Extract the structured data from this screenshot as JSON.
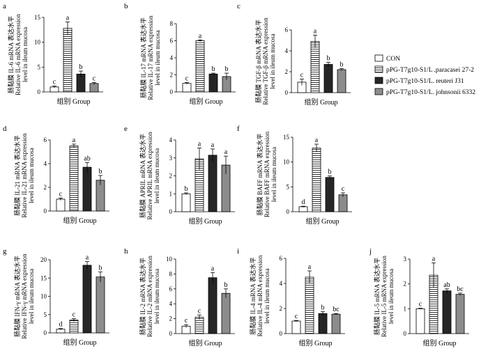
{
  "figure": {
    "series": [
      {
        "key": "con",
        "name": "CON",
        "fill": "#ffffff",
        "pattern": false
      },
      {
        "key": "l27",
        "name": "pPG-T7g10-S1/L .paracasei 27-2",
        "fill": "#ffffff",
        "pattern": true
      },
      {
        "key": "j31",
        "name": "pPG-T7g10-S1/L. reuteri J31",
        "fill": "#262626",
        "pattern": false
      },
      {
        "key": "j6332",
        "name": "pPG-T7g10-S1/L. johnsonii 6332",
        "fill": "#8c8c8c",
        "pattern": false
      }
    ],
    "colors": {
      "axis": "#000000",
      "dark_bar": "#262626",
      "grey_bar": "#8c8c8c",
      "hatch": "#000000"
    },
    "legend_position": "right"
  },
  "chart_data": [
    {
      "id": "a",
      "type": "bar",
      "panel_label": "a",
      "title": "",
      "xlabel": "组别 Group",
      "ylabel_cn": "肠黏膜 IL-6 mRNA 表达水平",
      "ylabel_en": "Relative IL-6 mRNA expression",
      "ylabel_en2": "level in ileum mucosa",
      "ylim": [
        0,
        15
      ],
      "yticks": [
        0,
        5,
        10,
        15
      ],
      "values": [
        1.0,
        12.8,
        3.6,
        1.7
      ],
      "errors": [
        0.2,
        1.3,
        0.6,
        0.2
      ],
      "letters": [
        "c",
        "a",
        "b",
        "c"
      ]
    },
    {
      "id": "b",
      "type": "bar",
      "panel_label": "b",
      "title": "",
      "xlabel": "组别 Group",
      "ylabel_cn": "肠黏膜 IL-17 mRNA 表达水平",
      "ylabel_en": "Relative IL-17 mRNA expression",
      "ylabel_en2": "level in ileum mucosa",
      "ylim": [
        0,
        8
      ],
      "yticks": [
        0,
        2,
        4,
        6,
        8
      ],
      "values": [
        1.0,
        6.0,
        2.1,
        1.8
      ],
      "errors": [
        0.1,
        0.1,
        0.1,
        0.4
      ],
      "letters": [
        "c",
        "a",
        "b",
        "b"
      ]
    },
    {
      "id": "c",
      "type": "bar",
      "panel_label": "c",
      "title": "",
      "xlabel": "组别 Group",
      "ylabel_cn": "肠黏膜 TGF-β mRNA 表达水平",
      "ylabel_en": "Relative TGF-β mRNA expression",
      "ylabel_en2": "level in ileum mucosa",
      "ylim": [
        0,
        6
      ],
      "yticks": [
        0,
        2,
        4,
        6
      ],
      "values": [
        1.0,
        4.9,
        2.7,
        2.2
      ],
      "errors": [
        0.3,
        0.6,
        0.2,
        0.1
      ],
      "letters": [
        "c",
        "a",
        "b",
        "b"
      ]
    },
    {
      "id": "d",
      "type": "bar",
      "panel_label": "d",
      "title": "",
      "xlabel": "组别 Group",
      "ylabel_cn": "肠黏膜 IL-21 mRNA 表达水平",
      "ylabel_en": "Relative IL-21 mRNA expression",
      "ylabel_en2": "level in ileum mucosa",
      "ylim": [
        0,
        6
      ],
      "yticks": [
        0,
        2,
        4,
        6
      ],
      "values": [
        1.0,
        5.5,
        3.7,
        2.6
      ],
      "errors": [
        0.1,
        0.15,
        0.4,
        0.4
      ],
      "letters": [
        "c",
        "a",
        "ab",
        "b"
      ]
    },
    {
      "id": "e",
      "type": "bar",
      "panel_label": "e",
      "title": "",
      "xlabel": "组别 Group",
      "ylabel_cn": "肠黏膜 APRIL mRNA 表达水平",
      "ylabel_en": "Relative APRIL mRNA expression",
      "ylabel_en2": "level in ileum mucosa",
      "ylim": [
        0,
        4
      ],
      "yticks": [
        0,
        1,
        2,
        3,
        4
      ],
      "values": [
        1.0,
        2.95,
        3.15,
        2.6
      ],
      "errors": [
        0.05,
        0.6,
        0.35,
        0.5
      ],
      "letters": [
        "b",
        "a",
        "a",
        "a"
      ]
    },
    {
      "id": "f",
      "type": "bar",
      "panel_label": "f",
      "title": "",
      "xlabel": "组别 Group",
      "ylabel_cn": "肠黏膜 BAFF mRNA 表达水平",
      "ylabel_en": "Relative BAFF mRNA expression",
      "ylabel_en2": "level in ileum mucosa",
      "ylim": [
        0,
        15
      ],
      "yticks": [
        0,
        5,
        10,
        15
      ],
      "values": [
        1.0,
        12.8,
        6.9,
        3.4
      ],
      "errors": [
        0.1,
        0.8,
        0.3,
        0.4
      ],
      "letters": [
        "d",
        "a",
        "b",
        "c"
      ]
    },
    {
      "id": "g",
      "type": "bar",
      "panel_label": "g",
      "title": "",
      "xlabel": "组别 Group",
      "ylabel_cn": "肠黏膜 IFN-γ mRNA 表达水平",
      "ylabel_en": "Relative IFN-γ mRNA expression",
      "ylabel_en2": "level in ileum mucosa",
      "ylim": [
        0,
        20
      ],
      "yticks": [
        0,
        5,
        10,
        15,
        20
      ],
      "values": [
        1.0,
        3.5,
        18.5,
        15.3
      ],
      "errors": [
        0.2,
        0.4,
        1.0,
        1.4
      ],
      "letters": [
        "d",
        "c",
        "a",
        "b"
      ]
    },
    {
      "id": "h",
      "type": "bar",
      "panel_label": "h",
      "title": "",
      "xlabel": "组别 Group",
      "ylabel_cn": "肠黏膜 IL-2 mRNA 表达水平",
      "ylabel_en": "Relative IL-2 mRNA expression",
      "ylabel_en2": "level in ileum mucosa",
      "ylim": [
        0,
        10
      ],
      "yticks": [
        0,
        2,
        4,
        6,
        8,
        10
      ],
      "values": [
        1.0,
        2.2,
        7.5,
        5.4
      ],
      "errors": [
        0.2,
        0.3,
        0.7,
        0.6
      ],
      "letters": [
        "c",
        "c",
        "a",
        "b"
      ]
    },
    {
      "id": "i",
      "type": "bar",
      "panel_label": "i",
      "title": "",
      "xlabel": "组别 Group",
      "ylabel_cn": "肠黏膜 IL-4 mRNA 表达水平",
      "ylabel_en": "Relative IL-4 mRNA expression",
      "ylabel_en2": "level in ileum mucosa",
      "ylim": [
        0,
        6
      ],
      "yticks": [
        0,
        2,
        4,
        6
      ],
      "values": [
        1.0,
        4.5,
        1.6,
        1.55
      ],
      "errors": [
        0.05,
        0.5,
        0.15,
        0.05
      ],
      "letters": [
        "c",
        "a",
        "b",
        "bc"
      ]
    },
    {
      "id": "j",
      "type": "bar",
      "panel_label": "j",
      "title": "",
      "xlabel": "组别 Group",
      "ylabel_cn": "肠黏膜 IL-5 mRNA 表达水平",
      "ylabel_en": "Relative IL-5 mRNA expression",
      "ylabel_en2": "level in ileum mucosa",
      "ylim": [
        0,
        3
      ],
      "yticks": [
        0,
        1,
        2,
        3
      ],
      "values": [
        1.0,
        2.35,
        1.72,
        1.58
      ],
      "errors": [
        0.02,
        0.5,
        0.08,
        0.05
      ],
      "letters": [
        "c",
        "a",
        "ab",
        "bc"
      ]
    }
  ]
}
